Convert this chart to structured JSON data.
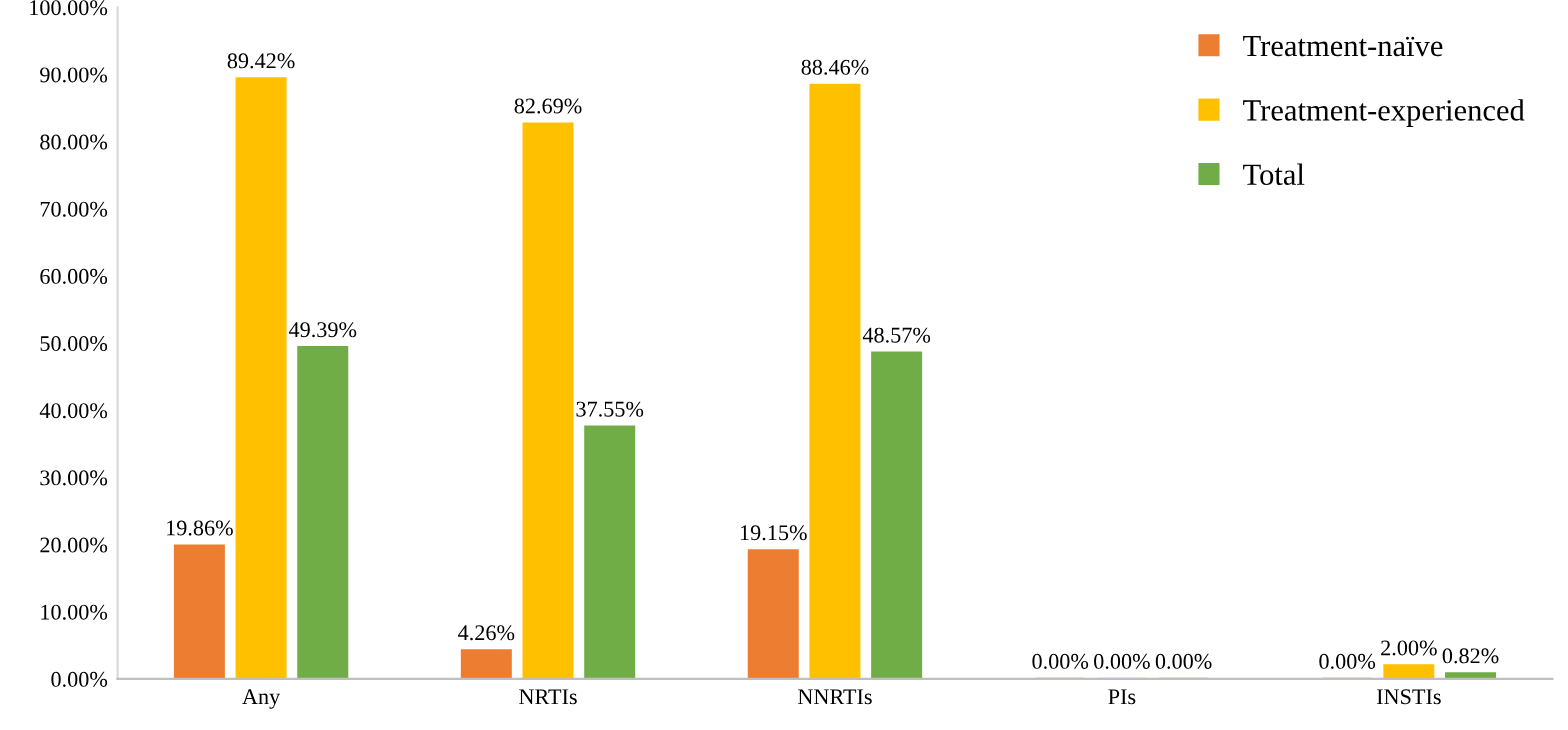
{
  "chart_data": {
    "type": "bar",
    "categories": [
      "Any",
      "NRTIs",
      "NNRTIs",
      "PIs",
      "INSTIs"
    ],
    "series": [
      {
        "name": "Treatment-naïve",
        "color": "#ed7d31",
        "values": [
          19.86,
          4.26,
          19.15,
          0.0,
          0.0
        ],
        "value_labels": [
          "19.86%",
          "4.26%",
          "19.15%",
          "0.00%",
          "0.00%"
        ]
      },
      {
        "name": "Treatment-experienced",
        "color": "#ffc000",
        "values": [
          89.42,
          82.69,
          88.46,
          0.0,
          2.0
        ],
        "value_labels": [
          "89.42%",
          "82.69%",
          "88.46%",
          "0.00%",
          "2.00%"
        ]
      },
      {
        "name": "Total",
        "color": "#70ad47",
        "values": [
          49.39,
          37.55,
          48.57,
          0.0,
          0.82
        ],
        "value_labels": [
          "49.39%",
          "37.55%",
          "48.57%",
          "0.00%",
          "0.82%"
        ]
      }
    ],
    "ylim": [
      0,
      100
    ],
    "yticks": [
      {
        "value": 0,
        "label": "0.00%"
      },
      {
        "value": 10,
        "label": "10.00%"
      },
      {
        "value": 20,
        "label": "20.00%"
      },
      {
        "value": 30,
        "label": "30.00%"
      },
      {
        "value": 40,
        "label": "40.00%"
      },
      {
        "value": 50,
        "label": "50.00%"
      },
      {
        "value": 60,
        "label": "60.00%"
      },
      {
        "value": 70,
        "label": "70.00%"
      },
      {
        "value": 80,
        "label": "80.00%"
      },
      {
        "value": 90,
        "label": "90.00%"
      },
      {
        "value": 100,
        "label": "100.00%"
      }
    ],
    "grid": false,
    "legend": "top right"
  }
}
